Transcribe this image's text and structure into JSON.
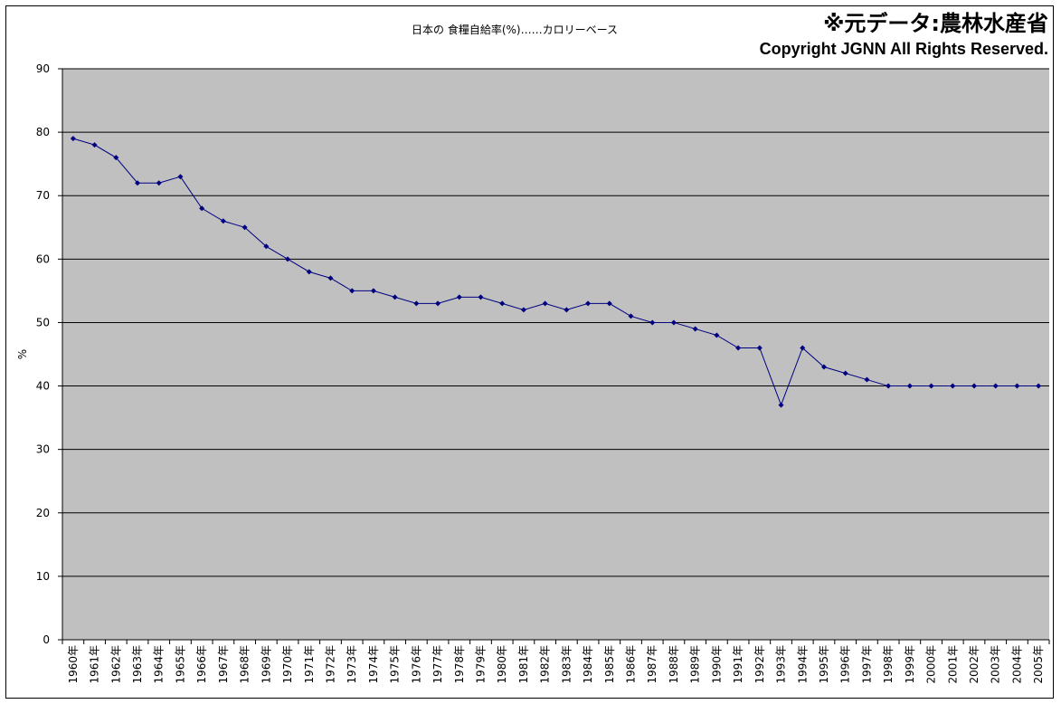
{
  "header": {
    "title": "日本の 食糧自給率(%)……カロリーベース",
    "source_note": "※元データ:農林水産省",
    "copyright": "Copyright JGNN All Rights Reserved."
  },
  "colors": {
    "plot_background": "#c0c0c0",
    "series_line": "#000080",
    "gridline": "#000000"
  },
  "chart_data": {
    "type": "line",
    "title": "日本の 食糧自給率(%)……カロリーベース",
    "xlabel": "",
    "ylabel": "%",
    "ylim": [
      0,
      90
    ],
    "yticks": [
      0,
      10,
      20,
      30,
      40,
      50,
      60,
      70,
      80,
      90
    ],
    "grid": true,
    "legend": "none",
    "categories": [
      "1960年",
      "1961年",
      "1962年",
      "1963年",
      "1964年",
      "1965年",
      "1966年",
      "1967年",
      "1968年",
      "1969年",
      "1970年",
      "1971年",
      "1972年",
      "1973年",
      "1974年",
      "1975年",
      "1976年",
      "1977年",
      "1978年",
      "1979年",
      "1980年",
      "1981年",
      "1982年",
      "1983年",
      "1984年",
      "1985年",
      "1986年",
      "1987年",
      "1988年",
      "1989年",
      "1990年",
      "1991年",
      "1992年",
      "1993年",
      "1994年",
      "1995年",
      "1996年",
      "1997年",
      "1998年",
      "1999年",
      "2000年",
      "2001年",
      "2002年",
      "2003年",
      "2004年",
      "2005年"
    ],
    "series": [
      {
        "values": [
          79,
          78,
          76,
          72,
          72,
          73,
          68,
          66,
          65,
          62,
          60,
          58,
          57,
          55,
          55,
          54,
          53,
          53,
          54,
          54,
          53,
          52,
          53,
          52,
          53,
          53,
          51,
          50,
          50,
          49,
          48,
          46,
          46,
          37,
          46,
          43,
          42,
          41,
          40,
          40,
          40,
          40,
          40,
          40,
          40,
          40
        ]
      }
    ]
  }
}
